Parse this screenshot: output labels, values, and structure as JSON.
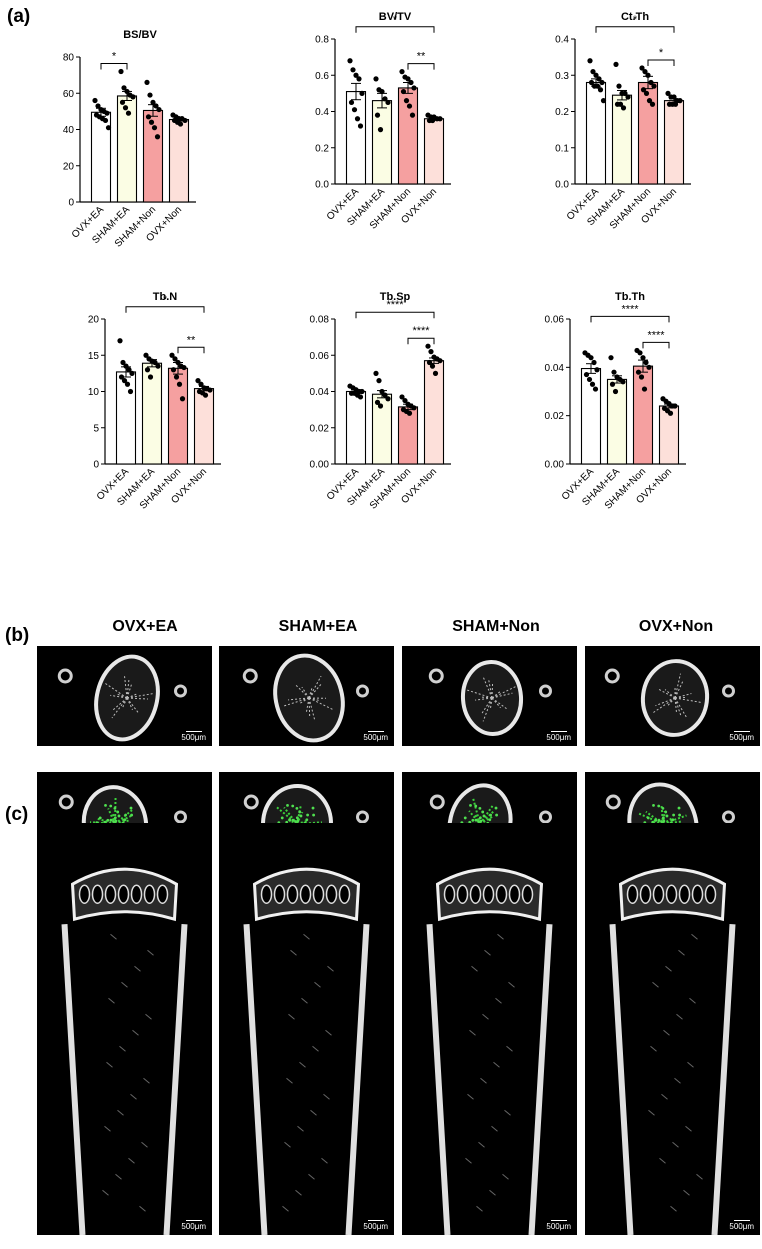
{
  "panels": {
    "a": "(a)",
    "b": "(b)",
    "c": "(c)"
  },
  "colors": {
    "OVX+EA": "#ffffff",
    "SHAM+EA": "#fbfde4",
    "SHAM+Non": "#f5a0a0",
    "OVX+Non": "#fde0da"
  },
  "chart_data": [
    {
      "type": "bar",
      "title": "BS/BV",
      "categories": [
        "OVX+EA",
        "SHAM+EA",
        "SHAM+Non",
        "OVX+Non"
      ],
      "values": [
        49.5,
        58.5,
        50.5,
        45.5
      ],
      "sem": [
        2.2,
        2.5,
        3.2,
        0.8
      ],
      "points": [
        [
          56,
          53,
          51,
          50,
          49,
          48,
          47,
          46,
          45,
          41
        ],
        [
          72,
          63,
          61,
          59,
          58,
          55,
          52,
          49
        ],
        [
          66,
          59,
          55,
          53,
          51,
          47,
          44,
          41,
          36
        ],
        [
          48,
          47,
          46,
          46,
          45,
          45,
          44,
          43
        ]
      ],
      "ylim": [
        0,
        80
      ],
      "yticks": [
        0,
        20,
        40,
        60,
        80
      ],
      "significance": [
        {
          "from": 0,
          "to": 1,
          "label": "*"
        }
      ]
    },
    {
      "type": "bar",
      "title": "BV/TV",
      "categories": [
        "OVX+EA",
        "SHAM+EA",
        "SHAM+Non",
        "OVX+Non"
      ],
      "values": [
        0.51,
        0.46,
        0.53,
        0.36
      ],
      "sem": [
        0.045,
        0.04,
        0.03,
        0.007
      ],
      "points": [
        [
          0.68,
          0.63,
          0.6,
          0.58,
          0.5,
          0.45,
          0.41,
          0.36,
          0.32
        ],
        [
          0.58,
          0.52,
          0.51,
          0.47,
          0.45,
          0.38,
          0.3
        ],
        [
          0.62,
          0.59,
          0.58,
          0.56,
          0.53,
          0.51,
          0.46,
          0.43,
          0.38
        ],
        [
          0.38,
          0.37,
          0.37,
          0.36,
          0.36,
          0.35,
          0.35
        ]
      ],
      "ylim": [
        0,
        0.8
      ],
      "yticks": [
        0.0,
        0.2,
        0.4,
        0.6,
        0.8
      ],
      "ytick_labels": [
        "0.0",
        "0.2",
        "0.4",
        "0.6",
        "0.8"
      ],
      "significance": [
        {
          "from": 0,
          "to": 3,
          "label": "*",
          "level": 2
        },
        {
          "from": 2,
          "to": 3,
          "label": "**",
          "level": 1
        }
      ]
    },
    {
      "type": "bar",
      "title": "Ct.Th",
      "categories": [
        "OVX+EA",
        "SHAM+EA",
        "SHAM+Non",
        "OVX+Non"
      ],
      "values": [
        0.28,
        0.245,
        0.28,
        0.23
      ],
      "sem": [
        0.01,
        0.013,
        0.017,
        0.005
      ],
      "points": [
        [
          0.34,
          0.31,
          0.3,
          0.29,
          0.28,
          0.28,
          0.27,
          0.27,
          0.26,
          0.23
        ],
        [
          0.33,
          0.27,
          0.25,
          0.25,
          0.24,
          0.22,
          0.22,
          0.21
        ],
        [
          0.32,
          0.31,
          0.3,
          0.28,
          0.27,
          0.26,
          0.25,
          0.23,
          0.22
        ],
        [
          0.25,
          0.24,
          0.24,
          0.23,
          0.23,
          0.22,
          0.22,
          0.22
        ]
      ],
      "ylim": [
        0,
        0.4
      ],
      "yticks": [
        0,
        0.1,
        0.2,
        0.3,
        0.4
      ],
      "ytick_labels": [
        "0.0",
        "0.1",
        "0.2",
        "0.3",
        "0.4"
      ],
      "significance": [
        {
          "from": 0,
          "to": 3,
          "label": "*",
          "level": 2
        },
        {
          "from": 2,
          "to": 3,
          "label": "*",
          "level": 1
        }
      ]
    },
    {
      "type": "bar",
      "title": "Tb.N",
      "categories": [
        "OVX+EA",
        "SHAM+EA",
        "SHAM+Non",
        "OVX+Non"
      ],
      "values": [
        12.7,
        13.9,
        13.2,
        10.4
      ],
      "sem": [
        0.7,
        0.5,
        0.8,
        0.3
      ],
      "points": [
        [
          17,
          14,
          13.5,
          13,
          12.5,
          12,
          11.5,
          11,
          10
        ],
        [
          15,
          14.5,
          14.2,
          14,
          13.5,
          13,
          12
        ],
        [
          15,
          14.5,
          14,
          13.5,
          13.3,
          13,
          12,
          11,
          9
        ],
        [
          11.5,
          11,
          10.5,
          10.4,
          10.2,
          10,
          9.8,
          9.5
        ]
      ],
      "ylim": [
        0,
        20
      ],
      "yticks": [
        0,
        5,
        10,
        15,
        20
      ],
      "significance": [
        {
          "from": 0,
          "to": 3,
          "label": "*",
          "level": 2
        },
        {
          "from": 2,
          "to": 3,
          "label": "**",
          "level": 1
        }
      ]
    },
    {
      "type": "bar",
      "title": "Tb.Sp",
      "categories": [
        "OVX+EA",
        "SHAM+EA",
        "SHAM+Non",
        "OVX+Non"
      ],
      "values": [
        0.04,
        0.0385,
        0.0315,
        0.057
      ],
      "sem": [
        0.001,
        0.002,
        0.0015,
        0.0015
      ],
      "points": [
        [
          0.043,
          0.042,
          0.041,
          0.04,
          0.04,
          0.039,
          0.039,
          0.038,
          0.037
        ],
        [
          0.05,
          0.046,
          0.04,
          0.038,
          0.036,
          0.034,
          0.032
        ],
        [
          0.037,
          0.035,
          0.033,
          0.032,
          0.031,
          0.03,
          0.029,
          0.028
        ],
        [
          0.065,
          0.062,
          0.059,
          0.058,
          0.057,
          0.056,
          0.054,
          0.05
        ]
      ],
      "ylim": [
        0,
        0.08
      ],
      "yticks": [
        0.0,
        0.02,
        0.04,
        0.06,
        0.08
      ],
      "ytick_labels": [
        "0.00",
        "0.02",
        "0.04",
        "0.06",
        "0.08"
      ],
      "significance": [
        {
          "from": 0,
          "to": 3,
          "label": "****",
          "level": 2
        },
        {
          "from": 2,
          "to": 3,
          "label": "****",
          "level": 1
        }
      ]
    },
    {
      "type": "bar",
      "title": "Tb.Th",
      "categories": [
        "OVX+EA",
        "SHAM+EA",
        "SHAM+Non",
        "OVX+Non"
      ],
      "values": [
        0.0395,
        0.035,
        0.0405,
        0.024
      ],
      "sem": [
        0.002,
        0.0015,
        0.0025,
        0.0008
      ],
      "points": [
        [
          0.046,
          0.045,
          0.044,
          0.042,
          0.039,
          0.037,
          0.035,
          0.033,
          0.031
        ],
        [
          0.044,
          0.038,
          0.036,
          0.035,
          0.034,
          0.033,
          0.03
        ],
        [
          0.047,
          0.046,
          0.044,
          0.042,
          0.04,
          0.038,
          0.036,
          0.031
        ],
        [
          0.027,
          0.026,
          0.025,
          0.024,
          0.024,
          0.023,
          0.022,
          0.021
        ]
      ],
      "ylim": [
        0,
        0.06
      ],
      "yticks": [
        0.0,
        0.02,
        0.04,
        0.06
      ],
      "ytick_labels": [
        "0.00",
        "0.02",
        "0.04",
        "0.06"
      ],
      "significance": [
        {
          "from": 0,
          "to": 3,
          "label": "****",
          "level": 2
        },
        {
          "from": 2,
          "to": 3,
          "label": "****",
          "level": 1
        }
      ]
    }
  ],
  "images": {
    "columns": [
      "OVX+EA",
      "SHAM+EA",
      "SHAM+Non",
      "OVX+Non"
    ],
    "scale_label": "500μm"
  }
}
